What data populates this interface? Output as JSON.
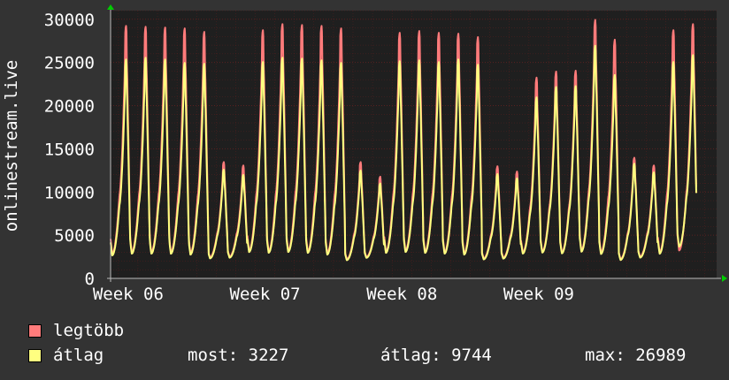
{
  "chart_data": {
    "type": "line",
    "ylabel": "onlinestream.live",
    "ylim": [
      0,
      31000
    ],
    "yticks": [
      0,
      5000,
      10000,
      15000,
      20000,
      25000,
      30000
    ],
    "xticks": [
      "Week 06",
      "Week 07",
      "Week 08",
      "Week 09"
    ],
    "x_days": [
      29,
      36,
      43,
      50
    ],
    "xlim": [
      28.6,
      59.6
    ],
    "series": [
      {
        "name": "legtöbb",
        "color": "#ff7b7b",
        "daily_peaks": [
          29300,
          29200,
          29100,
          29000,
          28600,
          13500,
          13100,
          28800,
          29500,
          29400,
          29300,
          29000,
          13500,
          11800,
          28500,
          28700,
          28500,
          28400,
          28000,
          13000,
          12400,
          23300,
          24000,
          24100,
          30000,
          27700,
          14000,
          13100,
          28800,
          29500
        ],
        "daily_troughs": [
          2300,
          2500,
          2500,
          2500,
          2400,
          2200,
          2300,
          2700,
          2600,
          2700,
          2600,
          2400,
          2000,
          2300,
          2600,
          2700,
          2600,
          2500,
          2400,
          2100,
          2200,
          2600,
          2700,
          2600,
          2700,
          2500,
          2000,
          2300,
          2500,
          2700
        ]
      },
      {
        "name": "átlag",
        "color": "#ffff80",
        "daily_peaks": [
          25400,
          25600,
          25400,
          25000,
          24900,
          12600,
          12000,
          25100,
          25600,
          25500,
          25300,
          25000,
          12500,
          11000,
          25200,
          25300,
          25100,
          25400,
          24800,
          12100,
          11600,
          21000,
          22200,
          22300,
          26989,
          23600,
          13300,
          12300,
          25100,
          25900
        ],
        "daily_troughs": [
          2200,
          2400,
          2400,
          2400,
          2300,
          2100,
          2200,
          2600,
          2500,
          2600,
          2500,
          2300,
          1900,
          2200,
          2500,
          2600,
          2500,
          2400,
          2300,
          2000,
          2100,
          2500,
          2600,
          2500,
          2600,
          2400,
          1900,
          2200,
          2400,
          3227
        ]
      }
    ]
  },
  "legend": {
    "max_label": "legtöbb",
    "avg_label": "átlag"
  },
  "stats": {
    "current": "most: 3227",
    "average": "átlag: 9744",
    "max": "max: 26989"
  },
  "colors": {
    "background": "#333333",
    "plot_bg": "#1f1f1f",
    "grid": "#592020",
    "axis": "#bbbbbb",
    "arrow": "#00cc00"
  }
}
